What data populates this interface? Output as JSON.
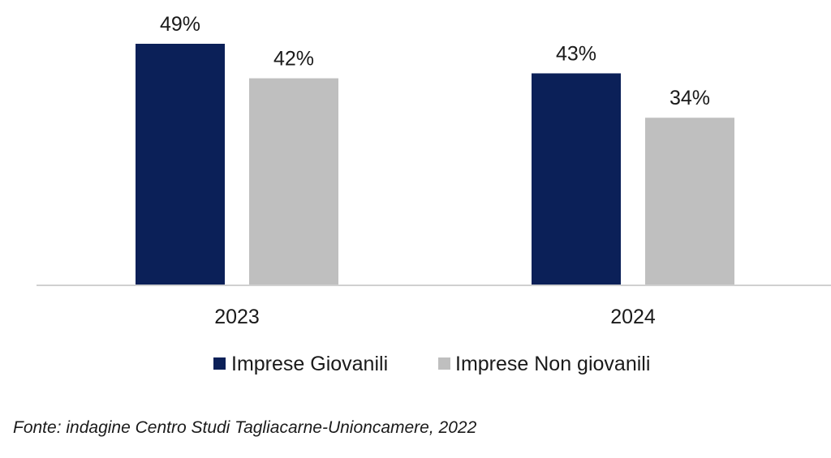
{
  "chart_data": {
    "type": "bar",
    "categories": [
      "2023",
      "2024"
    ],
    "series": [
      {
        "name": "Imprese Giovanili",
        "values": [
          49,
          43
        ],
        "labels": [
          "49%",
          "43%"
        ],
        "color": "#0b2058"
      },
      {
        "name": "Imprese Non giovanili",
        "values": [
          42,
          34
        ],
        "labels": [
          "42%",
          "34%"
        ],
        "color": "#bfbfbf"
      }
    ],
    "ylim": [
      0,
      49
    ],
    "grid": false,
    "legend_position": "bottom"
  },
  "source_note": "Fonte: indagine Centro Studi Tagliacarne-Unioncamere, 2022"
}
